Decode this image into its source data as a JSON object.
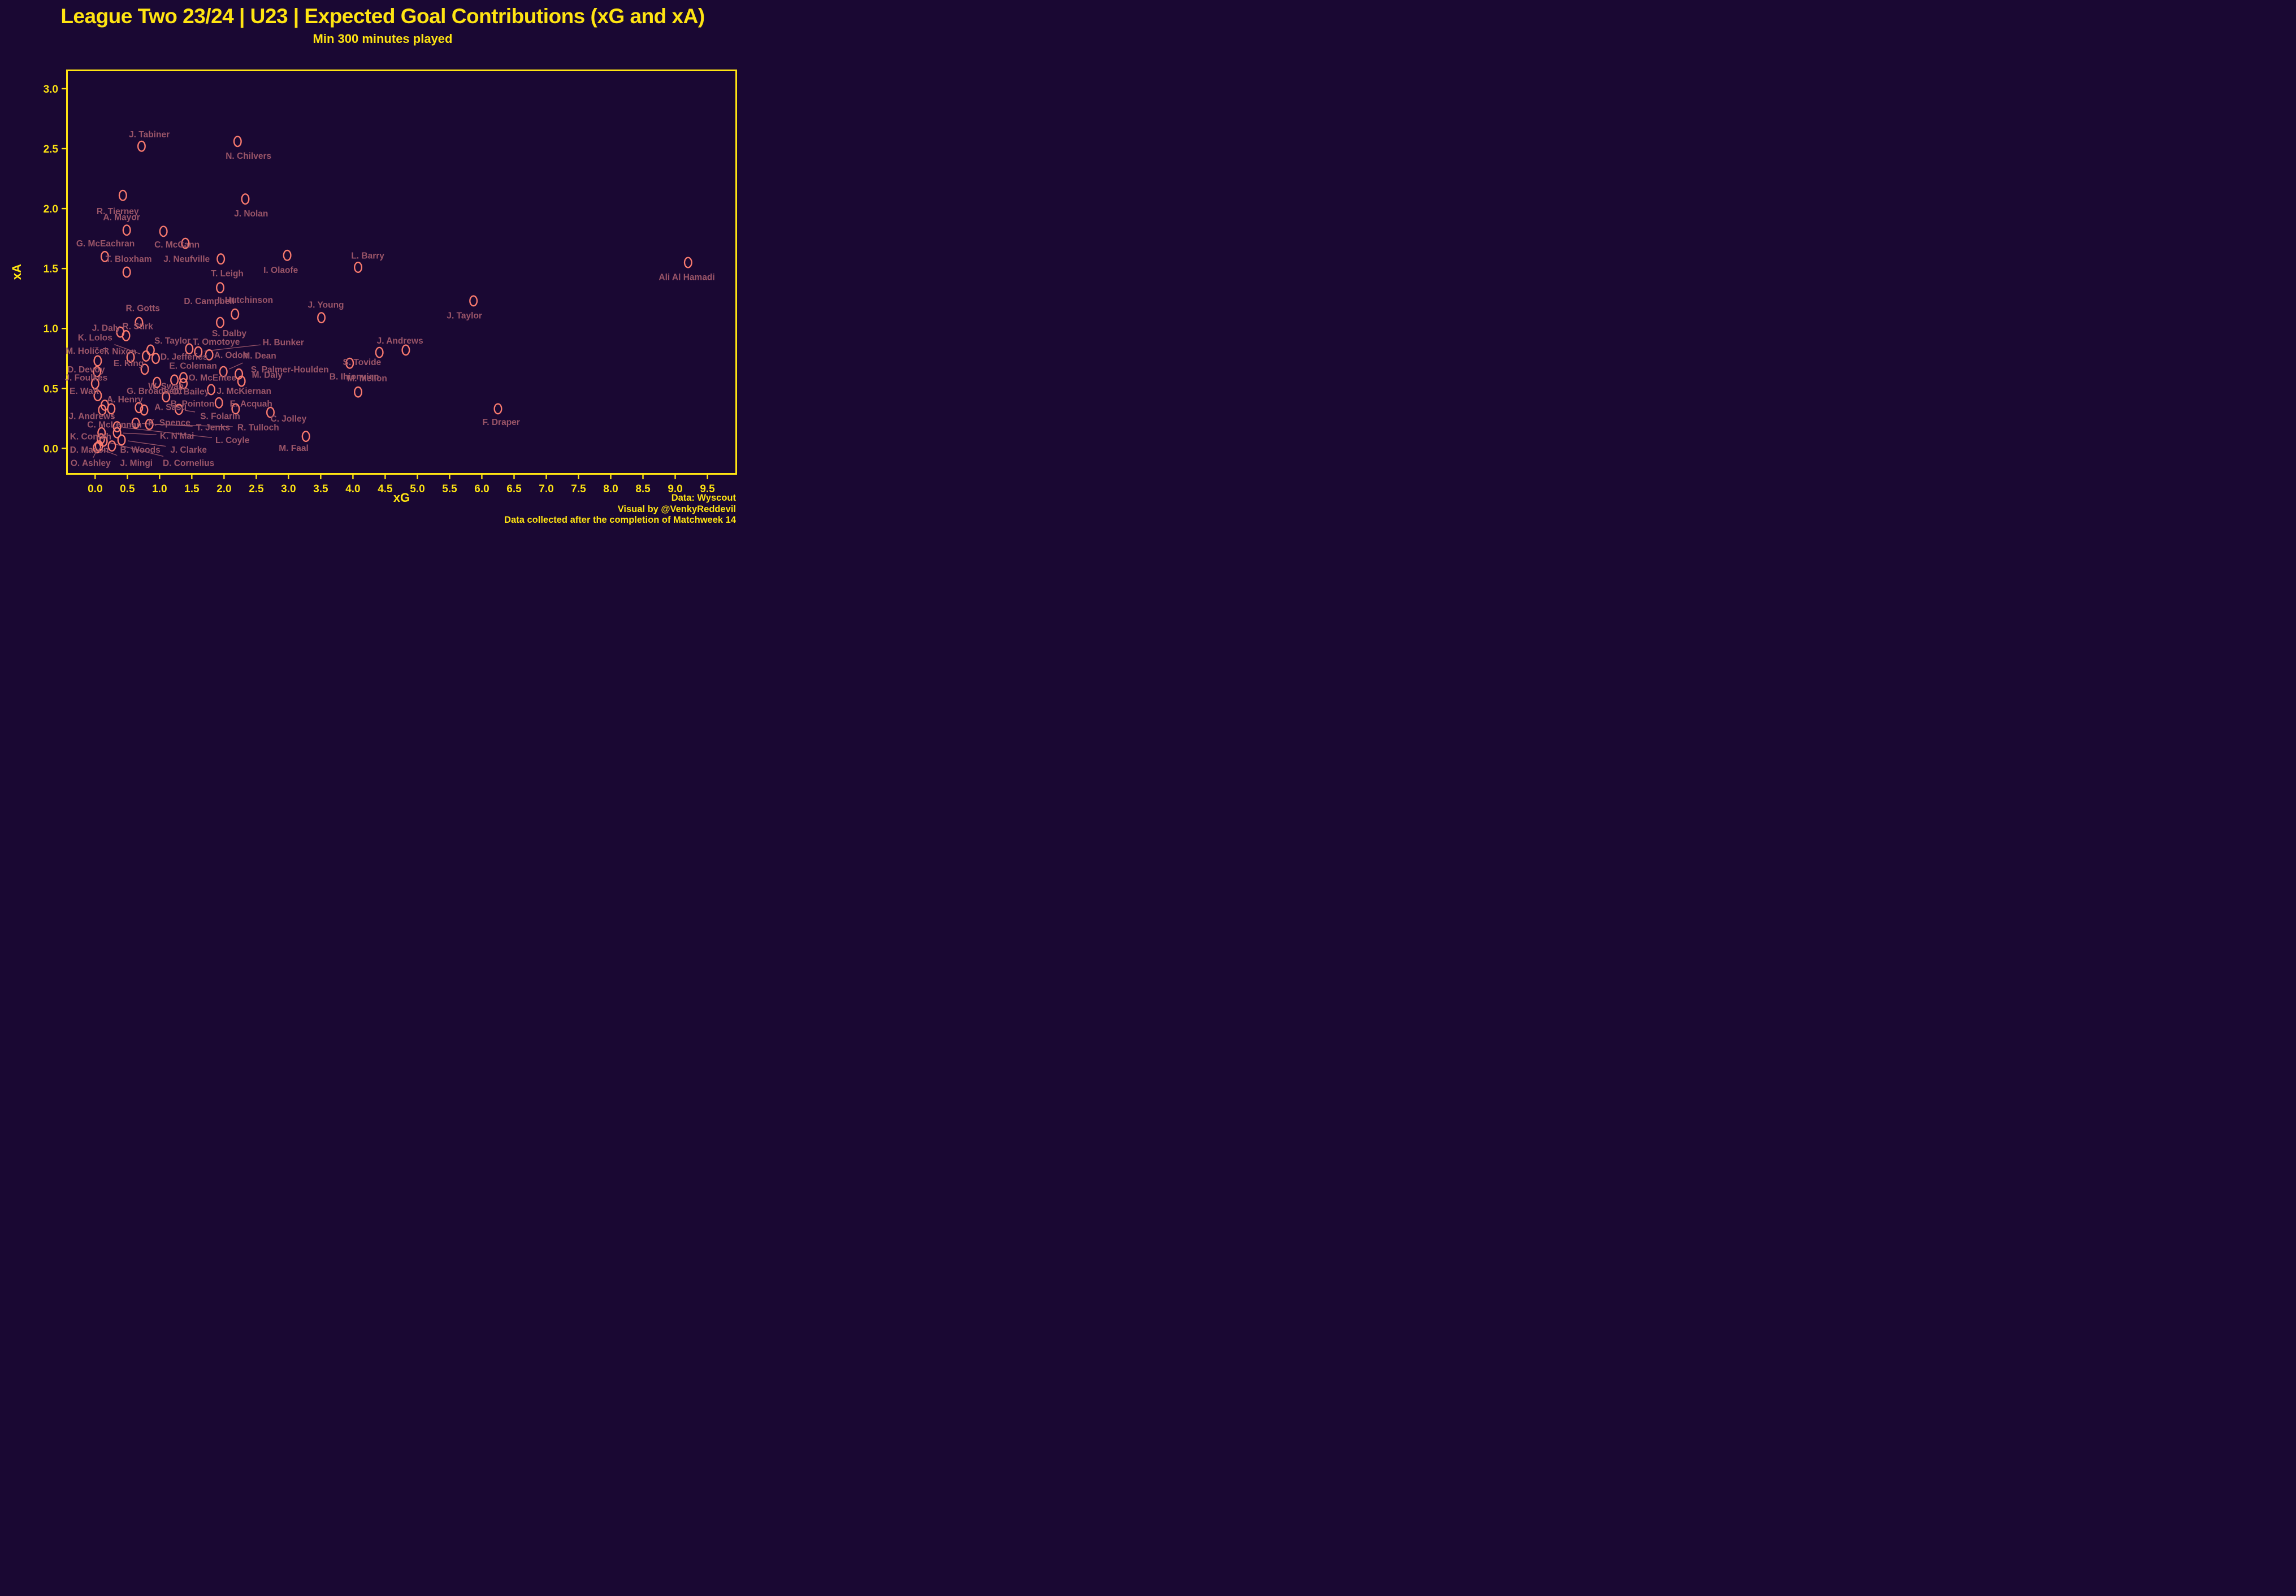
{
  "header": {
    "title": "League Two 23/24 | U23 | Expected Goal Contributions (xG and xA)",
    "subtitle": "Min 300 minutes played"
  },
  "footer": {
    "line1": "Data: Wyscout",
    "line2": "Visual by @VenkyReddevil",
    "line3": "Data collected after the completion of Matchweek 14"
  },
  "colors": {
    "background": "#1a0833",
    "accent_yellow": "#ffe412",
    "point_salmon": "#f87a6e",
    "label_rose": "#9a5568"
  },
  "chart_data": {
    "type": "scatter",
    "title": "League Two 23/24 | U23 | Expected Goal Contributions (xG and xA)",
    "subtitle": "Min 300 minutes played",
    "xlabel": "xG",
    "ylabel": "xA",
    "xlim": [
      -0.45,
      9.96
    ],
    "ylim": [
      -0.22,
      3.16
    ],
    "x_ticks": [
      0.0,
      0.5,
      1.0,
      1.5,
      2.0,
      2.5,
      3.0,
      3.5,
      4.0,
      4.5,
      5.0,
      5.5,
      6.0,
      6.5,
      7.0,
      7.5,
      8.0,
      8.5,
      9.0,
      9.5
    ],
    "y_ticks": [
      0.0,
      0.5,
      1.0,
      1.5,
      2.0,
      2.5,
      3.0
    ],
    "grid": false,
    "legend": "none",
    "marker": "hollow-ellipse",
    "players": [
      {
        "name": "J. Tabiner",
        "x": 0.72,
        "y": 2.52,
        "lx": 0.84,
        "ly": 2.62,
        "line": false
      },
      {
        "name": "N. Chilvers",
        "x": 2.21,
        "y": 2.56,
        "lx": 2.38,
        "ly": 2.44,
        "line": false
      },
      {
        "name": "R. Tierney",
        "x": 0.43,
        "y": 2.11,
        "lx": 0.35,
        "ly": 1.98,
        "line": false
      },
      {
        "name": "J. Nolan",
        "x": 2.33,
        "y": 2.08,
        "lx": 2.42,
        "ly": 1.96,
        "line": false
      },
      {
        "name": "A. Mayor",
        "x": 0.49,
        "y": 1.82,
        "lx": 0.41,
        "ly": 1.93,
        "line": false
      },
      {
        "name": "C. McCann",
        "x": 1.06,
        "y": 1.81,
        "lx": 1.27,
        "ly": 1.7,
        "line": false
      },
      {
        "name": "J. Neufville",
        "x": 1.4,
        "y": 1.71,
        "lx": 1.42,
        "ly": 1.58,
        "line": false
      },
      {
        "name": "G. McEachran",
        "x": 0.15,
        "y": 1.6,
        "lx": 0.16,
        "ly": 1.71,
        "line": false
      },
      {
        "name": "T. Leigh",
        "x": 1.95,
        "y": 1.58,
        "lx": 2.05,
        "ly": 1.46,
        "line": false
      },
      {
        "name": "I. Olaofe",
        "x": 2.98,
        "y": 1.61,
        "lx": 2.88,
        "ly": 1.49,
        "line": false
      },
      {
        "name": "T. Bloxham",
        "x": 0.49,
        "y": 1.47,
        "lx": 0.52,
        "ly": 1.58,
        "line": false
      },
      {
        "name": "D. Campbell",
        "x": 1.94,
        "y": 1.34,
        "lx": 1.77,
        "ly": 1.23,
        "line": false
      },
      {
        "name": "L. Barry",
        "x": 4.08,
        "y": 1.51,
        "lx": 4.23,
        "ly": 1.61,
        "line": false
      },
      {
        "name": "Ali Al Hamadi",
        "x": 9.2,
        "y": 1.55,
        "lx": 9.18,
        "ly": 1.43,
        "line": false
      },
      {
        "name": "J. Taylor",
        "x": 5.87,
        "y": 1.23,
        "lx": 5.73,
        "ly": 1.11,
        "line": false
      },
      {
        "name": "J. Young",
        "x": 3.51,
        "y": 1.09,
        "lx": 3.58,
        "ly": 1.2,
        "line": false
      },
      {
        "name": "I. Hutchinson",
        "x": 2.17,
        "y": 1.12,
        "lx": 2.33,
        "ly": 1.24,
        "line": false
      },
      {
        "name": "R. Gotts",
        "x": 0.68,
        "y": 1.05,
        "lx": 0.74,
        "ly": 1.17,
        "line": false
      },
      {
        "name": "S. Dalby",
        "x": 1.94,
        "y": 1.05,
        "lx": 2.08,
        "ly": 0.96,
        "line": false
      },
      {
        "name": "J. Daly",
        "x": 0.39,
        "y": 0.97,
        "lx": 0.17,
        "ly": 1.005,
        "line": true
      },
      {
        "name": "R. Stirk",
        "x": 0.48,
        "y": 0.94,
        "lx": 0.66,
        "ly": 1.02,
        "line": false
      },
      {
        "name": "K. Lolos",
        "x": 0.79,
        "y": 0.77,
        "lx": 0.0,
        "ly": 0.925,
        "line": true
      },
      {
        "name": "S. Taylor",
        "x": 0.86,
        "y": 0.82,
        "lx": 1.2,
        "ly": 0.9,
        "line": true
      },
      {
        "name": "T. Omotoye",
        "x": 1.46,
        "y": 0.83,
        "lx": 1.88,
        "ly": 0.89,
        "line": false
      },
      {
        "name": "H. Bunker",
        "x": 1.6,
        "y": 0.805,
        "lx": 2.92,
        "ly": 0.885,
        "line": true
      },
      {
        "name": "T. Nixon",
        "x": 0.55,
        "y": 0.76,
        "lx": 0.38,
        "ly": 0.81,
        "line": true
      },
      {
        "name": "M. Holíček",
        "x": 0.04,
        "y": 0.73,
        "lx": -0.12,
        "ly": 0.815,
        "line": true
      },
      {
        "name": "D. Jefferies",
        "x": 0.94,
        "y": 0.75,
        "lx": 1.38,
        "ly": 0.765,
        "line": false
      },
      {
        "name": "A. Odoh",
        "x": 1.77,
        "y": 0.78,
        "lx": 2.11,
        "ly": 0.78,
        "line": false
      },
      {
        "name": "M. Dean",
        "x": 1.99,
        "y": 0.64,
        "lx": 2.55,
        "ly": 0.775,
        "line": true
      },
      {
        "name": "S. Palmer-Houlden",
        "x": 2.23,
        "y": 0.62,
        "lx": 3.02,
        "ly": 0.66,
        "line": false
      },
      {
        "name": "D. Devoy",
        "x": 0.03,
        "y": 0.64,
        "lx": -0.14,
        "ly": 0.66,
        "line": true
      },
      {
        "name": "E. King",
        "x": 0.77,
        "y": 0.66,
        "lx": 0.52,
        "ly": 0.71,
        "line": true
      },
      {
        "name": "W. Swan",
        "x": 0.96,
        "y": 0.55,
        "lx": 1.1,
        "ly": 0.52,
        "line": false
      },
      {
        "name": "E. Coleman",
        "x": 1.23,
        "y": 0.57,
        "lx": 1.52,
        "ly": 0.69,
        "line": true
      },
      {
        "name": "O. McEntee",
        "x": 1.37,
        "y": 0.59,
        "lx": 1.82,
        "ly": 0.59,
        "line": false
      },
      {
        "name": "O. Bailey",
        "x": 1.37,
        "y": 0.54,
        "lx": 1.48,
        "ly": 0.475,
        "line": false
      },
      {
        "name": "M. Daly",
        "x": 2.27,
        "y": 0.56,
        "lx": 2.67,
        "ly": 0.615,
        "line": false
      },
      {
        "name": "J. McKiernan",
        "x": 1.8,
        "y": 0.49,
        "lx": 2.31,
        "ly": 0.48,
        "line": false
      },
      {
        "name": "J. Foulkes",
        "x": 0.0,
        "y": 0.54,
        "lx": -0.14,
        "ly": 0.59,
        "line": true
      },
      {
        "name": "E. Watt",
        "x": 0.04,
        "y": 0.44,
        "lx": -0.17,
        "ly": 0.48,
        "line": true
      },
      {
        "name": "G. Broadbent",
        "x": 0.68,
        "y": 0.34,
        "lx": 0.92,
        "ly": 0.48,
        "line": true
      },
      {
        "name": "A. Henry",
        "x": 0.15,
        "y": 0.36,
        "lx": 0.46,
        "ly": 0.41,
        "line": true
      },
      {
        "name": "A. Sasu",
        "x": 1.1,
        "y": 0.43,
        "lx": 1.17,
        "ly": 0.345,
        "line": true
      },
      {
        "name": "B. Pointon",
        "x": 1.92,
        "y": 0.38,
        "lx": 1.51,
        "ly": 0.375,
        "line": false
      },
      {
        "name": "E. Acquah",
        "x": 2.18,
        "y": 0.33,
        "lx": 2.42,
        "ly": 0.375,
        "line": false
      },
      {
        "name": "S. Tovide",
        "x": 4.41,
        "y": 0.8,
        "lx": 4.14,
        "ly": 0.72,
        "line": false
      },
      {
        "name": "B. Ihionvien",
        "x": 3.95,
        "y": 0.71,
        "lx": 4.02,
        "ly": 0.6,
        "line": false
      },
      {
        "name": "J. Andrews",
        "x": 4.82,
        "y": 0.82,
        "lx": 4.73,
        "ly": 0.9,
        "line": false
      },
      {
        "name": "M. Mellon",
        "x": 4.08,
        "y": 0.47,
        "lx": 4.22,
        "ly": 0.585,
        "line": false
      },
      {
        "name": "F. Draper",
        "x": 6.25,
        "y": 0.33,
        "lx": 6.3,
        "ly": 0.22,
        "line": false
      },
      {
        "name": "J. Andrews",
        "x": 0.11,
        "y": 0.32,
        "lx": -0.05,
        "ly": 0.27,
        "line": false
      },
      {
        "name": "K. Spence",
        "x": 0.76,
        "y": 0.32,
        "lx": 1.15,
        "ly": 0.215,
        "line": true
      },
      {
        "name": "S. Folarin",
        "x": 1.3,
        "y": 0.325,
        "lx": 1.94,
        "ly": 0.27,
        "line": true
      },
      {
        "name": "C. Jolley",
        "x": 2.72,
        "y": 0.3,
        "lx": 3.0,
        "ly": 0.25,
        "line": true
      },
      {
        "name": "C. McLennan",
        "x": 0.25,
        "y": 0.33,
        "lx": 0.3,
        "ly": 0.2,
        "line": true
      },
      {
        "name": "K. Conteh",
        "x": 0.1,
        "y": 0.13,
        "lx": -0.07,
        "ly": 0.1,
        "line": true
      },
      {
        "name": "K. N'Mai",
        "x": 0.34,
        "y": 0.13,
        "lx": 1.27,
        "ly": 0.105,
        "line": true
      },
      {
        "name": "L. Coyle",
        "x": 0.34,
        "y": 0.18,
        "lx": 2.13,
        "ly": 0.07,
        "line": true
      },
      {
        "name": "T. Jenks",
        "x": 0.63,
        "y": 0.21,
        "lx": 1.83,
        "ly": 0.175,
        "line": true
      },
      {
        "name": "R. Tulloch",
        "x": 0.84,
        "y": 0.2,
        "lx": 2.53,
        "ly": 0.175,
        "line": true
      },
      {
        "name": "D. Mason",
        "x": 0.09,
        "y": 0.08,
        "lx": -0.09,
        "ly": -0.01,
        "line": true
      },
      {
        "name": "B. Woods",
        "x": 0.26,
        "y": 0.02,
        "lx": 0.7,
        "ly": -0.01,
        "line": false
      },
      {
        "name": "J. Clarke",
        "x": 0.41,
        "y": 0.07,
        "lx": 1.45,
        "ly": -0.01,
        "line": true
      },
      {
        "name": "O. Ashley",
        "x": 0.06,
        "y": 0.02,
        "lx": -0.07,
        "ly": -0.12,
        "line": true
      },
      {
        "name": "J. Mingi",
        "x": 0.03,
        "y": 0.005,
        "lx": 0.64,
        "ly": -0.12,
        "line": true
      },
      {
        "name": "D. Cornelius",
        "x": 0.13,
        "y": 0.06,
        "lx": 1.45,
        "ly": -0.12,
        "line": true
      },
      {
        "name": "M. Faal",
        "x": 3.27,
        "y": 0.1,
        "lx": 3.08,
        "ly": 0.005,
        "line": false
      }
    ]
  }
}
